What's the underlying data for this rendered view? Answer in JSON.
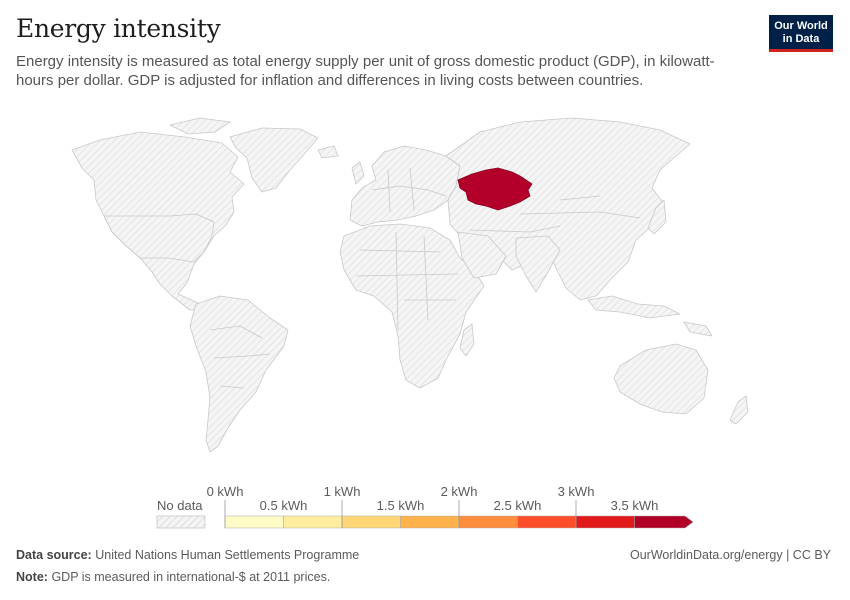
{
  "header": {
    "title": "Energy intensity",
    "subtitle": "Energy intensity is measured as total energy supply per unit of gross domestic product (GDP), in kilowatt-hours per dollar. GDP is adjusted for inflation and differences in living costs between countries."
  },
  "logo": {
    "line1": "Our World",
    "line2": "in Data"
  },
  "map": {
    "highlighted_country": "Kazakhstan",
    "highlight_color": "#b3002b",
    "nodata_fill": "#f5f5f5",
    "border_color": "#c8c8c8"
  },
  "legend": {
    "nodata_label": "No data",
    "ticks": [
      "0 kWh",
      "1 kWh",
      "2 kWh",
      "3 kWh"
    ],
    "mid_labels": [
      "0.5 kWh",
      "1.5 kWh",
      "2.5 kWh",
      "3.5 kWh"
    ],
    "bins": [
      {
        "from": 0,
        "to": 0.5,
        "color": "#fffbc6"
      },
      {
        "from": 0.5,
        "to": 1,
        "color": "#ffeea0"
      },
      {
        "from": 1,
        "to": 1.5,
        "color": "#fed676"
      },
      {
        "from": 1.5,
        "to": 2,
        "color": "#feb24c"
      },
      {
        "from": 2,
        "to": 2.5,
        "color": "#fd8d3c"
      },
      {
        "from": 2.5,
        "to": 3,
        "color": "#fc4e2a"
      },
      {
        "from": 3,
        "to": 3.5,
        "color": "#e31a1c"
      },
      {
        "from": 3.5,
        "to": 4,
        "color": "#b10026"
      }
    ]
  },
  "footer": {
    "source_label": "Data source:",
    "source_text": "United Nations Human Settlements Programme",
    "note_label": "Note:",
    "note_text": "GDP is measured in international-$ at 2011 prices.",
    "right_text": "OurWorldinData.org/energy | CC BY"
  }
}
